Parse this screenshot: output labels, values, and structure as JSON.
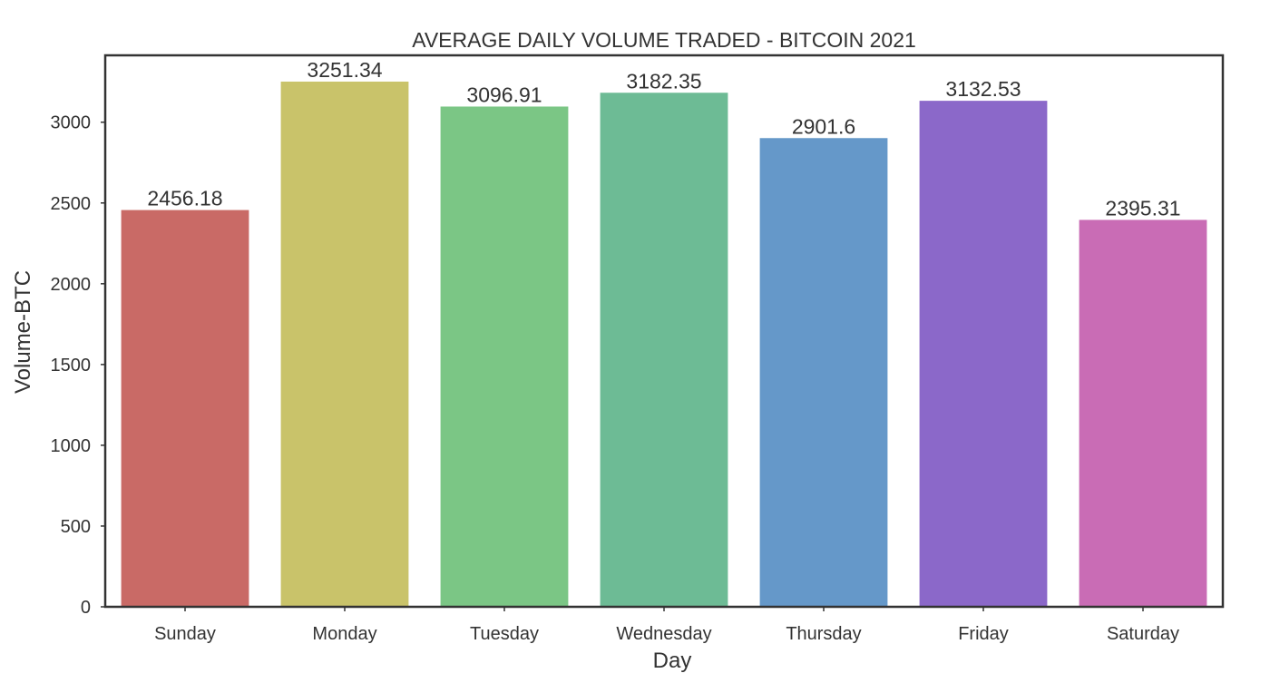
{
  "chart_data": {
    "type": "bar",
    "title": "AVERAGE DAILY VOLUME TRADED - BITCOIN 2021",
    "xlabel": "Day",
    "ylabel": "Volume-BTC",
    "categories": [
      "Sunday",
      "Monday",
      "Tuesday",
      "Wednesday",
      "Thursday",
      "Friday",
      "Saturday"
    ],
    "values": [
      2456.18,
      3251.34,
      3096.91,
      3182.35,
      2901.6,
      3132.53,
      2395.31
    ],
    "value_labels": [
      "2456.18",
      "3251.34",
      "3096.91",
      "3182.35",
      "2901.6",
      "3132.53",
      "2395.31"
    ],
    "colors": [
      "#c96a66",
      "#c9c36a",
      "#7bc685",
      "#6dbb95",
      "#6598c9",
      "#8b68c9",
      "#c96cb5"
    ],
    "yticks": [
      0,
      500,
      1000,
      1500,
      2000,
      2500,
      3000
    ],
    "ylim": [
      0,
      3414
    ],
    "grid": false,
    "legend": "none"
  }
}
